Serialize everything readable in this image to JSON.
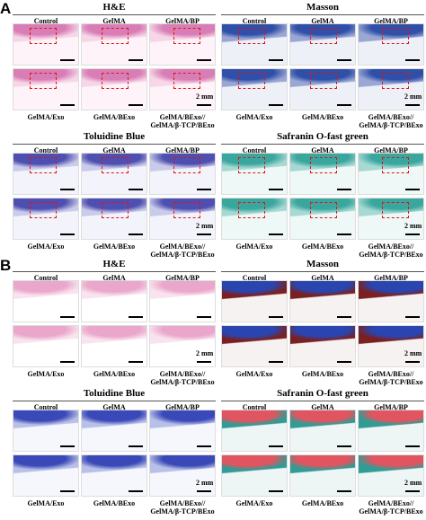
{
  "panels": [
    {
      "label": "A",
      "blocks": [
        {
          "title": "H&E",
          "top_labels": [
            "Control",
            "GelMA",
            "GelMA/BP"
          ],
          "bottom_labels": [
            "GelMA/Exo",
            "GelMA/BExo",
            "GelMA/BExo//\nGelMA/β-TCP/BExo"
          ],
          "scale": "2 mm"
        },
        {
          "title": "Masson",
          "top_labels": [
            "Control",
            "GelMA",
            "GelMA/BP"
          ],
          "bottom_labels": [
            "GelMA/Exo",
            "GelMA/BExo",
            "GelMA/BExo//\nGelMA/β-TCP/BExo"
          ],
          "scale": "2 mm"
        },
        {
          "title": "Toluidine Blue",
          "top_labels": [
            "Control",
            "GelMA",
            "GelMA/BP"
          ],
          "bottom_labels": [
            "GelMA/Exo",
            "GelMA/BExo",
            "GelMA/BExo//\nGelMA/β-TCP/BExo"
          ],
          "scale": "2 mm"
        },
        {
          "title": "Safranin O-fast green",
          "top_labels": [
            "Control",
            "GelMA",
            "GelMA/BP"
          ],
          "bottom_labels": [
            "GelMA/Exo",
            "GelMA/BExo",
            "GelMA/BExo//\nGelMA/β-TCP/BExo"
          ],
          "scale": "2 mm"
        }
      ]
    },
    {
      "label": "B",
      "blocks": [
        {
          "title": "H&E",
          "top_labels": [
            "Control",
            "GelMA",
            "GelMA/BP"
          ],
          "bottom_labels": [
            "GelMA/Exo",
            "GelMA/BExo",
            "GelMA/BExo//\nGelMA/β-TCP/BExo"
          ],
          "scale": "2 mm"
        },
        {
          "title": "Masson",
          "top_labels": [
            "Control",
            "GelMA",
            "GelMA/BP"
          ],
          "bottom_labels": [
            "GelMA/Exo",
            "GelMA/BExo",
            "GelMA/BExo//\nGelMA/β-TCP/BExo"
          ],
          "scale": "2 mm"
        },
        {
          "title": "Toluidine Blue",
          "top_labels": [
            "Control",
            "GelMA",
            "GelMA/BP"
          ],
          "bottom_labels": [
            "GelMA/Exo",
            "GelMA/BExo",
            "GelMA/BExo//\nGelMA/β-TCP/BExo"
          ],
          "scale": "2 mm"
        },
        {
          "title": "Safranin O-fast green",
          "top_labels": [
            "Control",
            "GelMA",
            "GelMA/BP"
          ],
          "bottom_labels": [
            "GelMA/Exo",
            "GelMA/BExo",
            "GelMA/BExo//\nGelMA/β-TCP/BExo"
          ],
          "scale": "2 mm"
        }
      ]
    }
  ]
}
